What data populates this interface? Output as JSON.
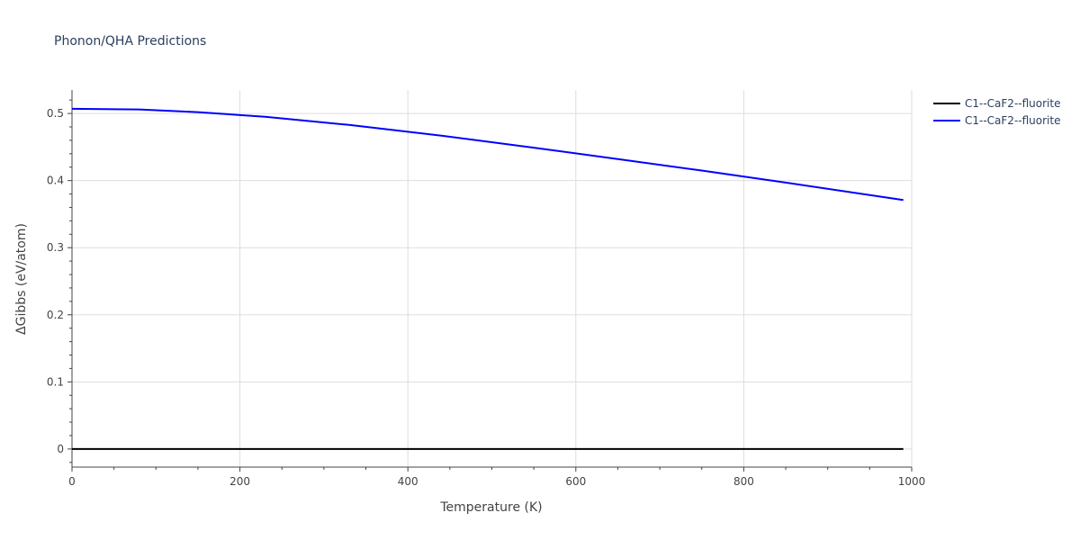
{
  "chart_data": {
    "type": "line",
    "title": "Phonon/QHA Predictions",
    "xlabel": "Temperature (K)",
    "ylabel": "ΔGibbs (eV/atom)",
    "xlim": [
      0,
      1000
    ],
    "ylim": [
      -0.027,
      0.535
    ],
    "x_ticks": [
      0,
      200,
      400,
      600,
      800,
      1000
    ],
    "x_tick_labels": [
      "0",
      "200",
      "400",
      "600",
      "800",
      "1000"
    ],
    "y_ticks": [
      0,
      0.1,
      0.2,
      0.3,
      0.4,
      0.5
    ],
    "y_tick_labels": [
      "0",
      "0.1",
      "0.2",
      "0.3",
      "0.4",
      "0.5"
    ],
    "grid": true,
    "legend_position": "top-right",
    "series": [
      {
        "name": "C1--CaF2--fluorite",
        "color": "#000000",
        "x": [
          0,
          990
        ],
        "y": [
          0,
          0
        ]
      },
      {
        "name": "C1--CaF2--fluorite",
        "color": "#0000ff",
        "x": [
          0,
          80,
          150,
          230,
          330,
          440,
          550,
          650,
          750,
          850,
          990
        ],
        "y": [
          0.507,
          0.506,
          0.502,
          0.495,
          0.483,
          0.467,
          0.449,
          0.432,
          0.415,
          0.397,
          0.371
        ]
      }
    ]
  }
}
